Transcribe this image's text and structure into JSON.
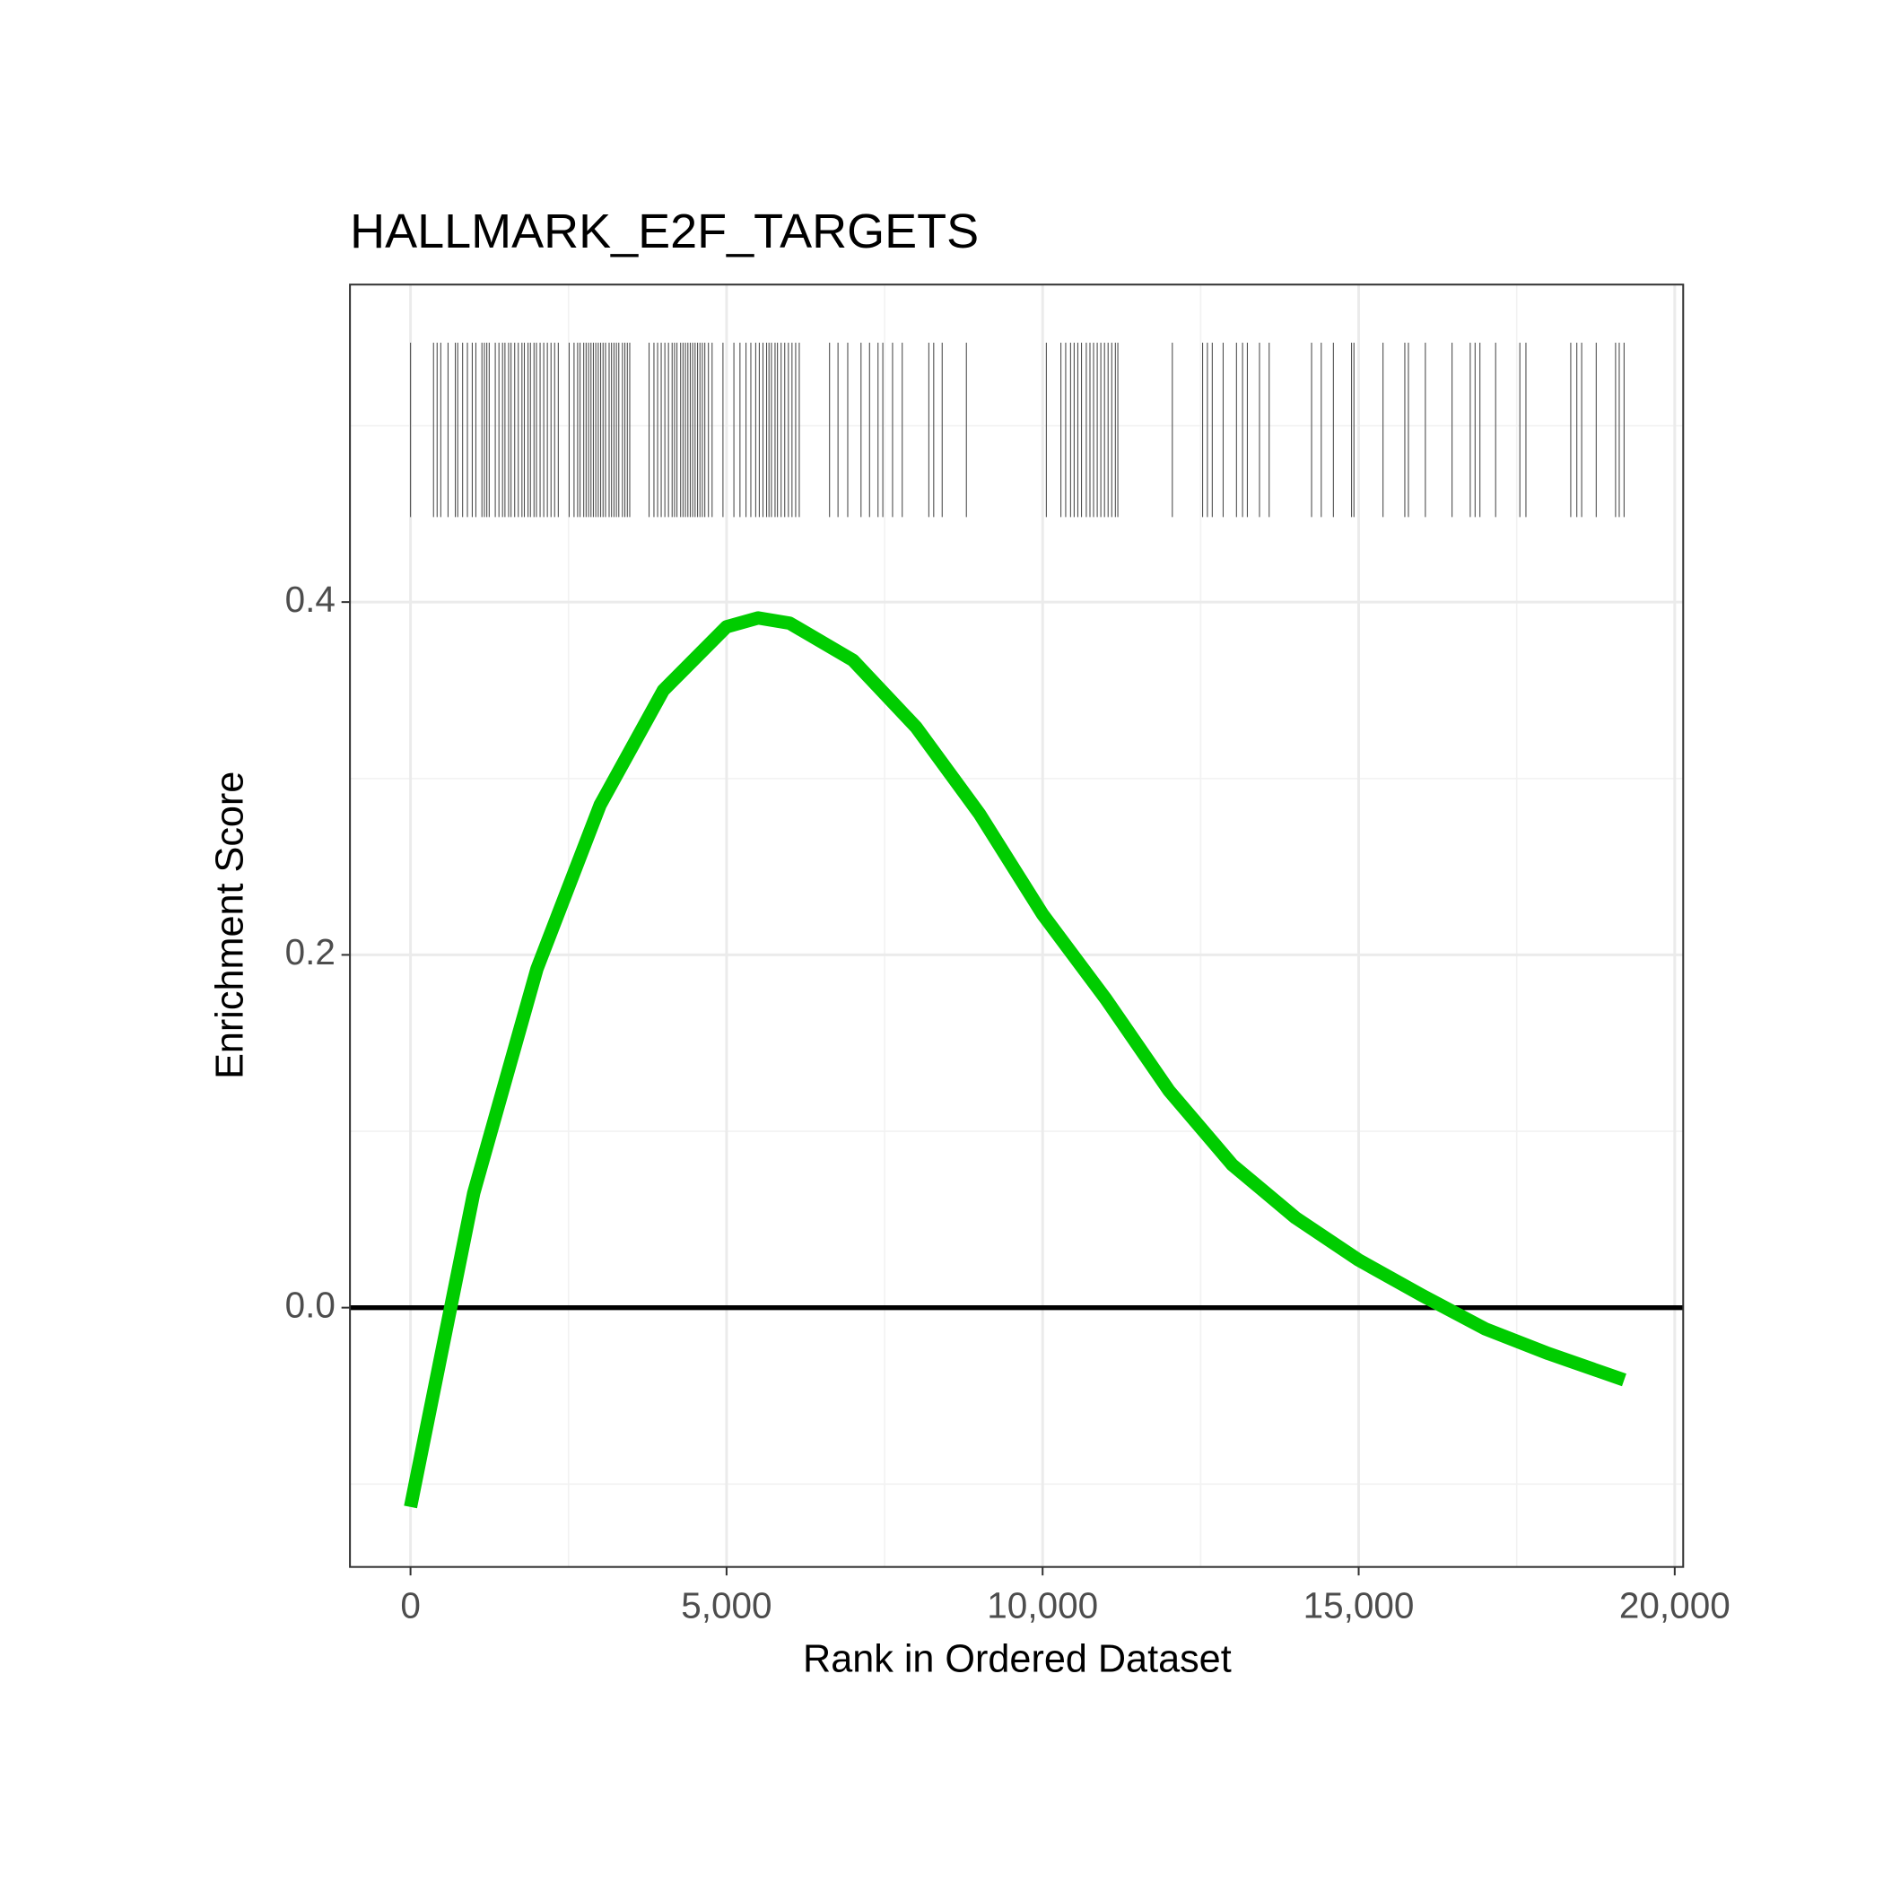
{
  "chart_data": {
    "type": "line",
    "title": "HALLMARK_E2F_TARGETS",
    "x_label": "Rank in Ordered Dataset",
    "y_label": "Enrichment Score",
    "x": [
      0,
      1000,
      2000,
      3000,
      4000,
      5000,
      5500,
      6000,
      7000,
      8000,
      9000,
      10000,
      11000,
      12000,
      13000,
      14000,
      15000,
      16000,
      17000,
      18000,
      19200
    ],
    "series": [
      {
        "name": "Enrichment Score",
        "color": "#00cc00",
        "values": [
          -0.113,
          0.065,
          0.192,
          0.285,
          0.35,
          0.386,
          0.391,
          0.388,
          0.367,
          0.329,
          0.28,
          0.223,
          0.175,
          0.123,
          0.081,
          0.051,
          0.027,
          0.007,
          -0.012,
          -0.026,
          -0.041
        ]
      }
    ],
    "hits": [
      0,
      364,
      421,
      479,
      594,
      709,
      747,
      824,
      900,
      977,
      1034,
      1130,
      1169,
      1207,
      1245,
      1341,
      1399,
      1456,
      1494,
      1552,
      1590,
      1648,
      1705,
      1763,
      1801,
      1859,
      1897,
      1954,
      1992,
      2050,
      2108,
      2165,
      2223,
      2280,
      2338,
      2510,
      2587,
      2644,
      2682,
      2740,
      2778,
      2817,
      2855,
      2893,
      2931,
      2970,
      3008,
      3046,
      3085,
      3142,
      3180,
      3219,
      3257,
      3295,
      3353,
      3391,
      3430,
      3468,
      3774,
      3851,
      3909,
      3966,
      4024,
      4081,
      4139,
      4177,
      4215,
      4273,
      4311,
      4349,
      4388,
      4426,
      4464,
      4502,
      4541,
      4579,
      4617,
      4656,
      4713,
      4771,
      4943,
      5116,
      5212,
      5307,
      5384,
      5461,
      5518,
      5576,
      5633,
      5671,
      5710,
      5767,
      5805,
      5863,
      5920,
      5978,
      6035,
      6093,
      6150,
      6629,
      6763,
      6917,
      7127,
      7262,
      7396,
      7472,
      7626,
      7779,
      8200,
      8277,
      8411,
      8794,
      10059,
      10289,
      10365,
      10442,
      10499,
      10557,
      10615,
      10691,
      10749,
      10806,
      10864,
      10921,
      10979,
      11036,
      11094,
      11151,
      11190,
      12052,
      12531,
      12607,
      12684,
      12856,
      13067,
      13163,
      13239,
      13431,
      13584,
      14255,
      14408,
      14600,
      14887,
      14925,
      15385,
      15730,
      15787,
      16055,
      16477,
      16765,
      16842,
      16918,
      17167,
      17550,
      17646,
      18355,
      18451,
      18528,
      18758,
      19064,
      19122,
      19199
    ],
    "hit_color": "#4d4d4d",
    "hline": 0,
    "hline_color": "#000000",
    "xlim": [
      -958,
      20134
    ],
    "ylim": [
      -0.147,
      0.58
    ],
    "xticks": [
      0,
      {
        "value": 5000,
        "label": "5,000"
      },
      {
        "value": 10000,
        "label": "10,000"
      },
      {
        "value": 15000,
        "label": "15,000"
      },
      {
        "value": 20000,
        "label": "20,000"
      }
    ],
    "yticks": [
      {
        "value": 0,
        "label": "0.0"
      },
      0.2,
      0.4
    ],
    "grid": true
  }
}
